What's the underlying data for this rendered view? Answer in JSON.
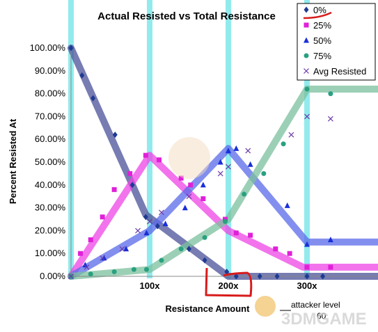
{
  "chart_data": {
    "type": "line",
    "title": "Actual Resisted vs Total Resistance",
    "xlabel": "Resistance Amount",
    "ylabel": "Percent Resisted At",
    "y_ticks": [
      "0.00%",
      "10.00%",
      "20.00%",
      "30.00%",
      "40.00%",
      "50.00%",
      "60.00%",
      "70.00%",
      "80.00%",
      "90.00%",
      "100.00%"
    ],
    "x_ticks": [
      "100x",
      "200x",
      "300x"
    ],
    "xlim": [
      0,
      390
    ],
    "ylim": [
      0,
      100
    ],
    "grid": "vertical highlight bands at 0x, 100x, 200x, 300x",
    "legend_position": "top-right",
    "series": [
      {
        "name": "0%",
        "color": "#1f3a93",
        "band_color": "#4a5298",
        "marker": "diamond",
        "band": [
          [
            0,
            100
          ],
          [
            95,
            27
          ],
          [
            200,
            0
          ],
          [
            390,
            0
          ]
        ],
        "points": [
          [
            0,
            100
          ],
          [
            14,
            88
          ],
          [
            28,
            78
          ],
          [
            56,
            62
          ],
          [
            78,
            40
          ],
          [
            95,
            26
          ],
          [
            110,
            22
          ],
          [
            150,
            12
          ],
          [
            170,
            7
          ],
          [
            198,
            2
          ],
          [
            210,
            0
          ],
          [
            240,
            0
          ],
          [
            262,
            0
          ],
          [
            300,
            0
          ],
          [
            320,
            0
          ]
        ]
      },
      {
        "name": "25%",
        "color": "#e020d8",
        "band_color": "#ee44e6",
        "marker": "square",
        "band": [
          [
            0,
            0
          ],
          [
            100,
            53
          ],
          [
            200,
            20
          ],
          [
            295,
            4
          ],
          [
            390,
            4
          ]
        ],
        "points": [
          [
            0,
            0
          ],
          [
            12,
            10
          ],
          [
            25,
            16
          ],
          [
            40,
            26
          ],
          [
            55,
            38
          ],
          [
            75,
            45
          ],
          [
            95,
            53
          ],
          [
            112,
            51
          ],
          [
            140,
            43
          ],
          [
            152,
            40
          ],
          [
            168,
            34
          ],
          [
            196,
            25
          ],
          [
            210,
            19
          ],
          [
            228,
            18
          ],
          [
            260,
            12
          ],
          [
            278,
            10
          ],
          [
            300,
            4
          ],
          [
            330,
            4
          ]
        ]
      },
      {
        "name": "50%",
        "color": "#1a2fd8",
        "band_color": "#5a6ae8",
        "marker": "triangle",
        "band": [
          [
            0,
            0
          ],
          [
            100,
            20
          ],
          [
            200,
            56
          ],
          [
            300,
            15
          ],
          [
            390,
            15
          ]
        ],
        "points": [
          [
            0,
            0
          ],
          [
            18,
            5
          ],
          [
            42,
            8
          ],
          [
            70,
            12
          ],
          [
            96,
            19
          ],
          [
            120,
            23
          ],
          [
            145,
            30
          ],
          [
            168,
            40
          ],
          [
            190,
            50
          ],
          [
            200,
            55
          ],
          [
            210,
            56
          ],
          [
            228,
            49
          ],
          [
            275,
            31
          ],
          [
            300,
            14
          ],
          [
            330,
            16
          ]
        ]
      },
      {
        "name": "75%",
        "color": "#2aa080",
        "band_color": "#7bc09d",
        "marker": "circle",
        "band": [
          [
            0,
            0
          ],
          [
            100,
            3
          ],
          [
            200,
            25
          ],
          [
            300,
            82
          ],
          [
            390,
            82
          ]
        ],
        "points": [
          [
            0,
            0
          ],
          [
            25,
            1
          ],
          [
            55,
            2
          ],
          [
            80,
            3
          ],
          [
            96,
            3
          ],
          [
            115,
            7
          ],
          [
            140,
            12
          ],
          [
            170,
            17
          ],
          [
            196,
            24
          ],
          [
            220,
            36
          ],
          [
            245,
            45
          ],
          [
            270,
            58
          ],
          [
            300,
            82
          ],
          [
            330,
            80
          ]
        ]
      },
      {
        "name": "Avg Resisted",
        "color": "#6a3aa8",
        "marker": "x",
        "points": [
          [
            0,
            0
          ],
          [
            20,
            4
          ],
          [
            40,
            8
          ],
          [
            65,
            12
          ],
          [
            85,
            20
          ],
          [
            100,
            24
          ],
          [
            115,
            28
          ],
          [
            150,
            35
          ],
          [
            190,
            45
          ],
          [
            200,
            48
          ],
          [
            225,
            55
          ],
          [
            280,
            62
          ],
          [
            300,
            70
          ],
          [
            330,
            69
          ]
        ]
      }
    ]
  },
  "annotations": {
    "attacker_level_label": "attacker level",
    "attacker_level_value": "60"
  },
  "watermark": {
    "text": "3DMGAME"
  }
}
